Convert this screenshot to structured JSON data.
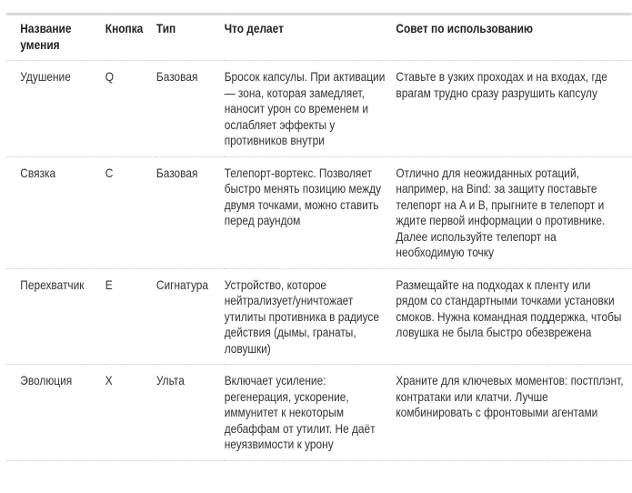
{
  "table": {
    "headers": [
      "Название умения",
      "Кнопка",
      "Тип",
      "Что делает",
      "Совет по использованию"
    ],
    "rows": [
      [
        "Удушение",
        "Q",
        "Базовая",
        "Бросок капсулы. При активации — зона, которая замедляет, наносит урон со временем и ослабляет эффекты у противников внутри",
        "Ставьте в узких проходах и на входах, где врагам трудно сразу разрушить капсулу"
      ],
      [
        "Связка",
        "C",
        "Базовая",
        "Телепорт-вортекс. Позволяет быстро менять позицию между двумя точками, можно ставить перед раундом",
        "Отлично для неожиданных ротаций, например, на Bind: за защиту поставьте телепорт на A и B, прыгните в телепорт и ждите первой информации о противнике. Далее используйте телепорт на необходимую точку"
      ],
      [
        "Перехватчик",
        "E",
        "Сигнатура",
        "Устройство, которое нейтрализует/уничтожает утилиты противника в радиусе действия (дымы, гранаты, ловушки)",
        "Размещайте на подходах к пленту или рядом со стандартными точками установки смоков. Нужна командная поддержка, чтобы ловушка не была быстро обезврежена"
      ],
      [
        "Эволюция",
        "X",
        "Ульта",
        "Включает усиление: регенерация, ускорение, иммунитет к некоторым дебаффам от утилит. Не даёт неуязвимости к урону",
        "Храните для ключевых моментов: постплэнт, контратаки или клатчи. Лучше комбинировать с фронтовыми агентами"
      ]
    ]
  }
}
